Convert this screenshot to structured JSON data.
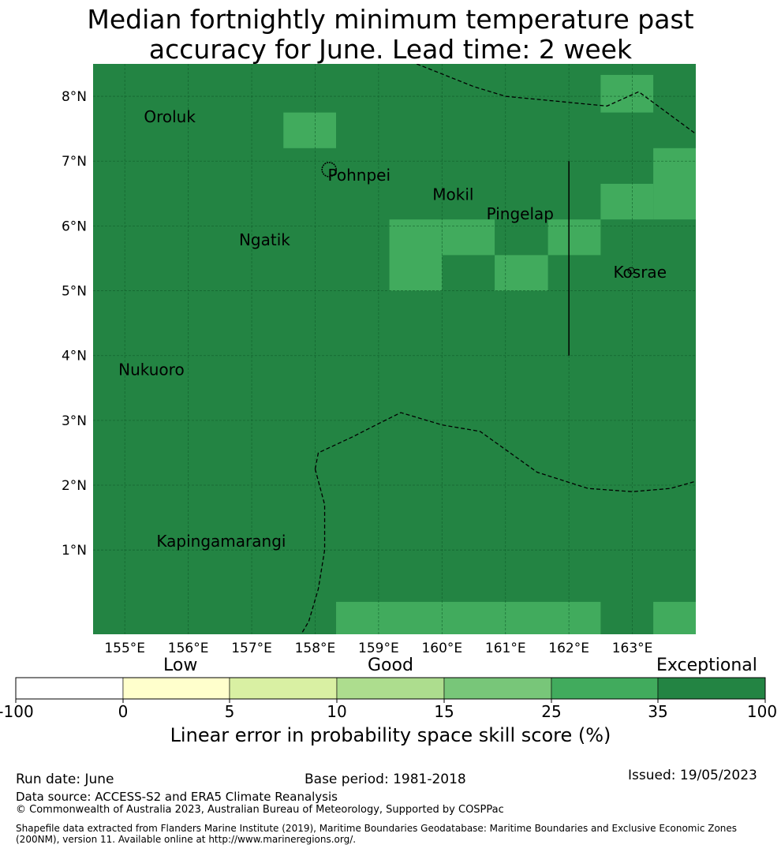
{
  "title": {
    "line1": "Median fortnightly minimum temperature past",
    "line2": "accuracy for June. Lead time: 2 week"
  },
  "map": {
    "lon_labels": [
      "155°E",
      "156°E",
      "157°E",
      "158°E",
      "159°E",
      "160°E",
      "161°E",
      "162°E",
      "163°E"
    ],
    "lat_labels": [
      "8°N",
      "7°N",
      "6°N",
      "5°N",
      "4°N",
      "3°N",
      "2°N",
      "1°N"
    ],
    "lon_range": [
      154.5,
      164.0
    ],
    "lat_range": [
      -0.3,
      8.5
    ],
    "base_color": "#238443",
    "highlight_color": "#41ab5d",
    "place_names": [
      {
        "name": "Oroluk",
        "lon": 155.3,
        "lat": 7.6
      },
      {
        "name": "Pohnpei",
        "lon": 158.2,
        "lat": 6.7
      },
      {
        "name": "Mokil",
        "lon": 159.85,
        "lat": 6.4
      },
      {
        "name": "Pingelap",
        "lon": 160.7,
        "lat": 6.1
      },
      {
        "name": "Ngatik",
        "lon": 156.8,
        "lat": 5.7
      },
      {
        "name": "Kosrae",
        "lon": 162.7,
        "lat": 5.2
      },
      {
        "name": "Nukuoro",
        "lon": 154.9,
        "lat": 3.7
      },
      {
        "name": "Kapingamarangi",
        "lon": 155.5,
        "lat": 1.05
      }
    ],
    "highlight_cells": [
      {
        "lon": [
          162.5,
          163.33
        ],
        "lat": [
          7.75,
          8.33
        ]
      },
      {
        "lon": [
          157.5,
          158.33
        ],
        "lat": [
          7.2,
          7.75
        ]
      },
      {
        "lon": [
          163.33,
          164.0
        ],
        "lat": [
          6.1,
          7.2
        ]
      },
      {
        "lon": [
          162.5,
          163.33
        ],
        "lat": [
          6.1,
          6.65
        ]
      },
      {
        "lon": [
          159.17,
          160.0
        ],
        "lat": [
          5.0,
          6.1
        ]
      },
      {
        "lon": [
          160.0,
          160.83
        ],
        "lat": [
          5.55,
          6.1
        ]
      },
      {
        "lon": [
          161.67,
          162.5
        ],
        "lat": [
          5.55,
          6.1
        ]
      },
      {
        "lon": [
          160.83,
          161.67
        ],
        "lat": [
          5.0,
          5.55
        ]
      },
      {
        "lon": [
          158.33,
          162.5
        ],
        "lat": [
          -0.3,
          0.2
        ]
      },
      {
        "lon": [
          163.33,
          164.0
        ],
        "lat": [
          -0.3,
          0.2
        ]
      }
    ]
  },
  "colorbar": {
    "categories": [
      "Low",
      "Good",
      "Exceptional"
    ],
    "ticks": [
      "-100",
      "0",
      "5",
      "10",
      "15",
      "25",
      "35",
      "100"
    ],
    "colors": [
      "#ffffff",
      "#ffffcc",
      "#d9f0a3",
      "#addd8e",
      "#78c679",
      "#41ab5d",
      "#238443"
    ],
    "label": "Linear error in probability space skill score (%)"
  },
  "footer": {
    "run_date": "Run date: June",
    "base_period": "Base period: 1981-2018",
    "issued": "Issued: 19/05/2023",
    "data_source": "Data source: ACCESS-S2 and ERA5 Climate Reanalysis",
    "copyright": "© Commonwealth of Australia 2023, Australian Bureau of Meteorology, Supported by COSPPac",
    "shapefile_line1": "Shapefile data extracted from Flanders Marine Institute (2019), Maritime Boundaries Geodatabase: Maritime Boundaries and Exclusive Economic Zones",
    "shapefile_line2": "(200NM), version 11. Available online at http://www.marineregions.org/."
  }
}
